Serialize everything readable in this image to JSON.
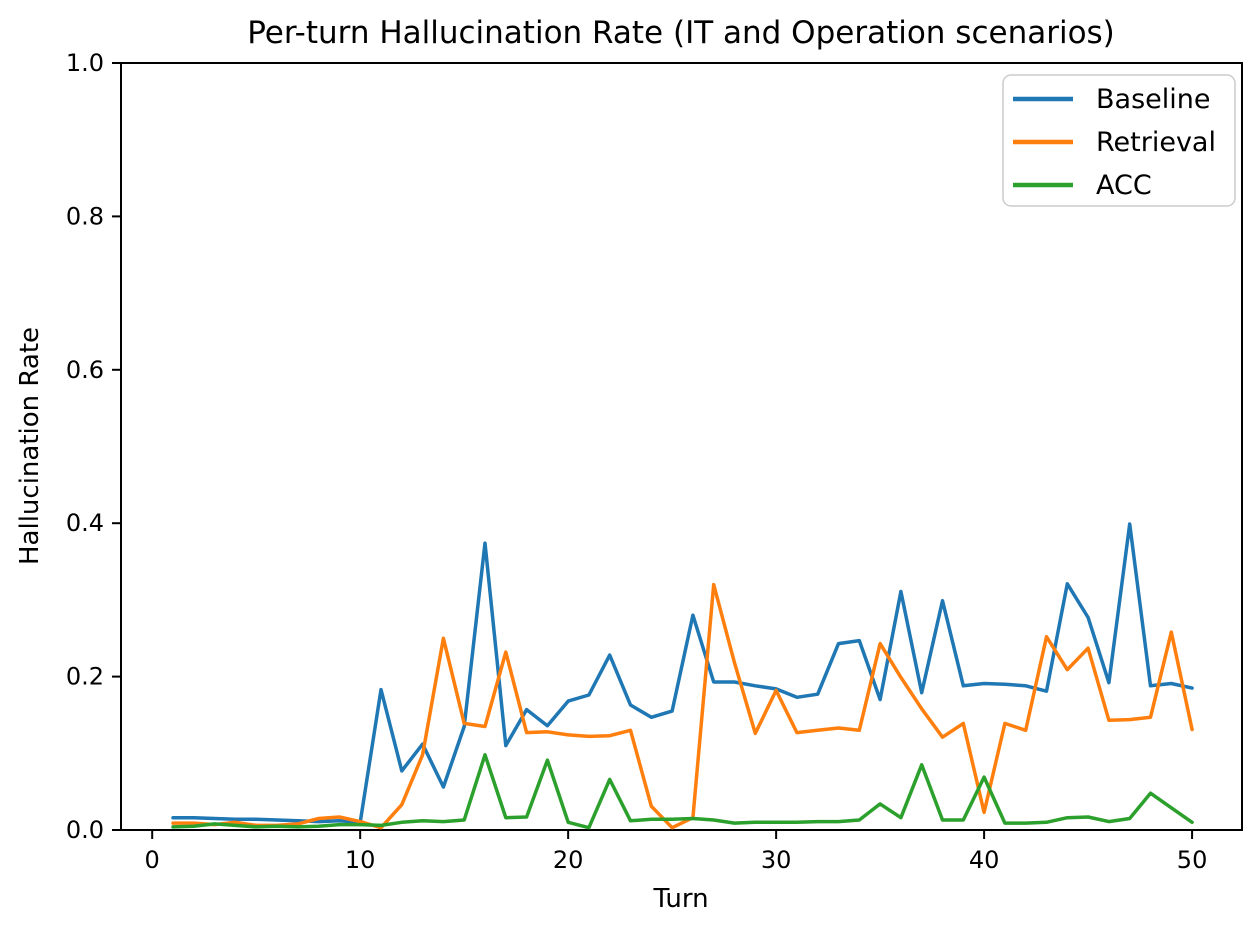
{
  "figure": {
    "background": "#ffffff",
    "text_color": "#000000"
  },
  "chart_data": {
    "type": "line",
    "title": "Per-turn Hallucination Rate (IT and Operation scenarios)",
    "xlabel": "Turn",
    "ylabel": "Hallucination Rate",
    "xlim": [
      -1.5,
      52.4
    ],
    "ylim": [
      0.0,
      1.0
    ],
    "grid": false,
    "legend_position": "upper right",
    "x_ticks": [
      {
        "v": 0,
        "label": "0"
      },
      {
        "v": 10,
        "label": "10"
      },
      {
        "v": 20,
        "label": "20"
      },
      {
        "v": 30,
        "label": "30"
      },
      {
        "v": 40,
        "label": "40"
      },
      {
        "v": 50,
        "label": "50"
      }
    ],
    "y_ticks": [
      {
        "v": 0.0,
        "label": "0.0"
      },
      {
        "v": 0.2,
        "label": "0.2"
      },
      {
        "v": 0.4,
        "label": "0.4"
      },
      {
        "v": 0.6,
        "label": "0.6"
      },
      {
        "v": 0.8,
        "label": "0.8"
      },
      {
        "v": 1.0,
        "label": "1.0"
      }
    ],
    "x": [
      1,
      2,
      3,
      4,
      5,
      6,
      7,
      8,
      9,
      10,
      11,
      12,
      13,
      14,
      15,
      16,
      17,
      18,
      19,
      20,
      21,
      22,
      23,
      24,
      25,
      26,
      27,
      28,
      29,
      30,
      31,
      32,
      33,
      34,
      35,
      36,
      37,
      38,
      39,
      40,
      41,
      42,
      43,
      44,
      45,
      46,
      47,
      48,
      49,
      50
    ],
    "series": [
      {
        "name": "Baseline",
        "color": "#1f77b4",
        "values": [
          0.016,
          0.016,
          0.015,
          0.014,
          0.014,
          0.013,
          0.012,
          0.011,
          0.012,
          0.01,
          0.183,
          0.077,
          0.112,
          0.056,
          0.135,
          0.374,
          0.11,
          0.157,
          0.136,
          0.168,
          0.176,
          0.228,
          0.163,
          0.147,
          0.155,
          0.28,
          0.193,
          0.193,
          0.188,
          0.184,
          0.173,
          0.177,
          0.243,
          0.247,
          0.17,
          0.311,
          0.179,
          0.299,
          0.188,
          0.191,
          0.19,
          0.188,
          0.181,
          0.321,
          0.277,
          0.192,
          0.399,
          0.188,
          0.191,
          0.185
        ]
      },
      {
        "name": "Retrieval",
        "color": "#ff7f0e",
        "values": [
          0.009,
          0.009,
          0.007,
          0.01,
          0.006,
          0.006,
          0.008,
          0.015,
          0.017,
          0.011,
          0.003,
          0.033,
          0.098,
          0.25,
          0.139,
          0.135,
          0.232,
          0.127,
          0.128,
          0.124,
          0.122,
          0.123,
          0.13,
          0.031,
          0.003,
          0.016,
          0.32,
          0.218,
          0.126,
          0.182,
          0.127,
          0.13,
          0.133,
          0.13,
          0.243,
          0.199,
          0.158,
          0.121,
          0.139,
          0.023,
          0.139,
          0.13,
          0.252,
          0.209,
          0.237,
          0.143,
          0.144,
          0.147,
          0.258,
          0.131
        ]
      },
      {
        "name": "ACC",
        "color": "#2ca02c",
        "values": [
          0.004,
          0.005,
          0.008,
          0.006,
          0.004,
          0.005,
          0.004,
          0.005,
          0.007,
          0.007,
          0.006,
          0.01,
          0.012,
          0.011,
          0.013,
          0.098,
          0.016,
          0.017,
          0.091,
          0.01,
          0.003,
          0.066,
          0.012,
          0.014,
          0.014,
          0.015,
          0.013,
          0.009,
          0.01,
          0.01,
          0.01,
          0.011,
          0.011,
          0.013,
          0.034,
          0.016,
          0.085,
          0.013,
          0.013,
          0.069,
          0.009,
          0.009,
          0.01,
          0.016,
          0.017,
          0.011,
          0.015,
          0.048,
          0.029,
          0.01
        ]
      }
    ]
  }
}
